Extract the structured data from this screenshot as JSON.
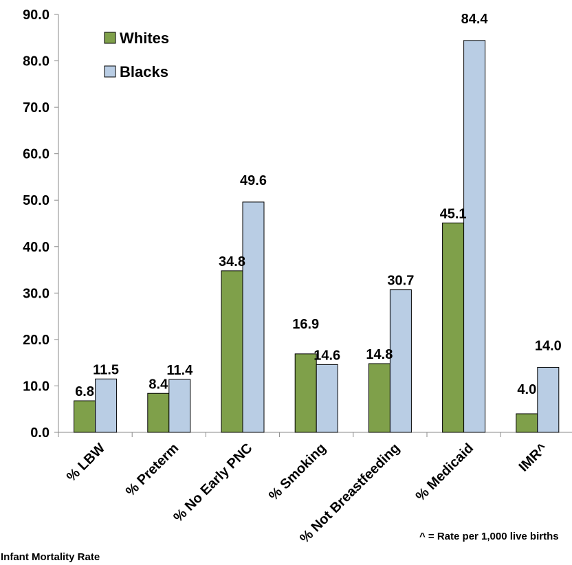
{
  "chart_data": {
    "type": "bar",
    "categories": [
      "% LBW",
      "% Preterm",
      "% No Early PNC",
      "% Smoking",
      "% Not Breastfeeding",
      "% Medicaid",
      "IMR^"
    ],
    "series": [
      {
        "name": "Whites",
        "values": [
          6.8,
          8.4,
          34.8,
          16.9,
          14.8,
          45.1,
          4.0
        ],
        "labels": [
          "6.8",
          "8.4",
          "34.8",
          "16.9",
          "14.8",
          "45.1",
          "4.0"
        ],
        "color": "#7fa04a"
      },
      {
        "name": "Blacks",
        "values": [
          11.5,
          11.4,
          49.6,
          14.6,
          30.7,
          84.4,
          14.0
        ],
        "labels": [
          "11.5",
          "11.4",
          "49.6",
          "14.6",
          "30.7",
          "84.4",
          "14.0"
        ],
        "color": "#b9cde4"
      }
    ],
    "ylim": [
      0,
      90
    ],
    "yticks": [
      "0.0",
      "10.0",
      "20.0",
      "30.0",
      "40.0",
      "50.0",
      "60.0",
      "70.0",
      "80.0",
      "90.0"
    ],
    "legend_position": "top-left",
    "grid": false
  },
  "notes": {
    "footnote": "^ = Rate per 1,000 live births",
    "bottom_left": "Infant Mortality Rate"
  }
}
